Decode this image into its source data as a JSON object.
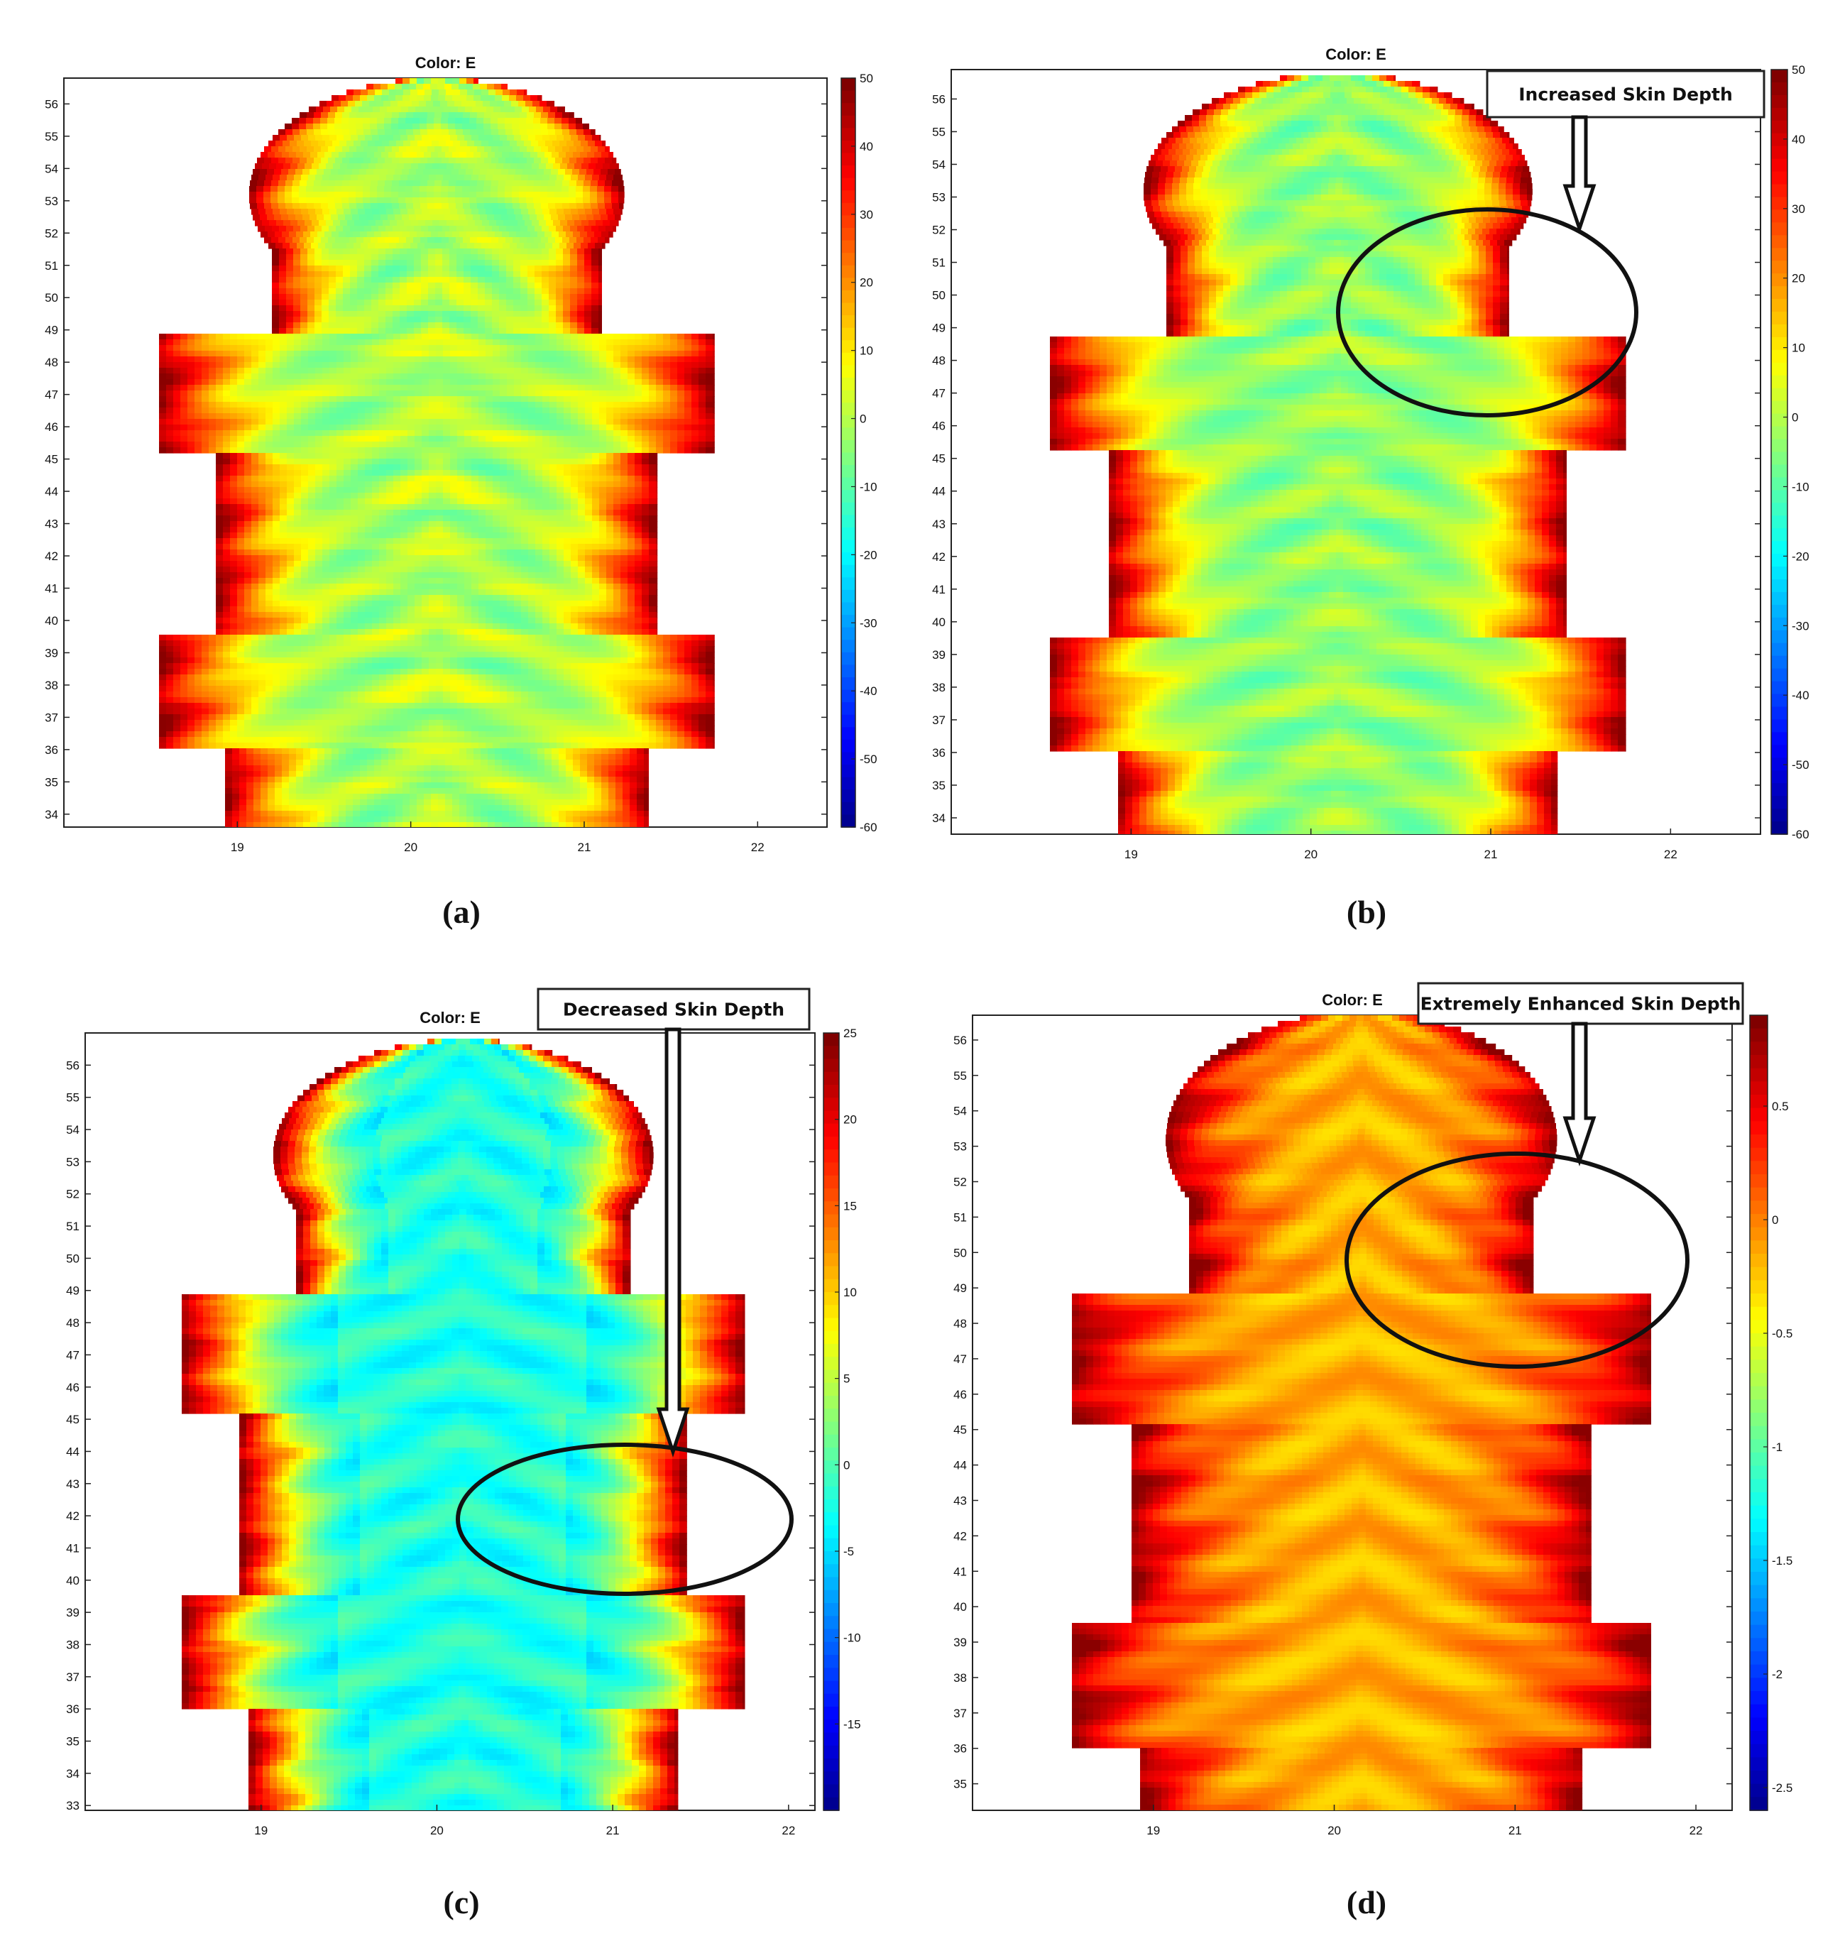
{
  "figure": {
    "panels": [
      {
        "id": "a",
        "caption": "(a)",
        "title": "Color: E",
        "callout": "",
        "colormap": "jet",
        "profile": "normal"
      },
      {
        "id": "b",
        "caption": "(b)",
        "title": "Color: E",
        "callout": "Increased Skin Depth",
        "colormap": "jet",
        "profile": "increased"
      },
      {
        "id": "c",
        "caption": "(c)",
        "title": "Color: E",
        "callout": "Decreased Skin Depth",
        "colormap": "jet",
        "profile": "decreased"
      },
      {
        "id": "d",
        "caption": "(d)",
        "title": "Color: E",
        "callout": "Extremely Enhanced Skin Depth",
        "colormap": "jet",
        "profile": "extreme"
      }
    ]
  },
  "chart_data": [
    {
      "type": "heatmap",
      "title": "Color: E",
      "xlabel": "",
      "ylabel": "",
      "x_ticks": [
        "19",
        "20",
        "21",
        "22"
      ],
      "y_ticks": [
        "34",
        "35",
        "36",
        "37",
        "38",
        "39",
        "40",
        "41",
        "42",
        "43",
        "44",
        "45",
        "46",
        "47",
        "48",
        "49",
        "50",
        "51",
        "52",
        "53",
        "54",
        "55",
        "56"
      ],
      "xlim": [
        18.0,
        22.4
      ],
      "ylim": [
        33.6,
        56.8
      ],
      "colorbar_ticks": [
        "50",
        "40",
        "30",
        "20",
        "10",
        "0",
        "-10",
        "-20",
        "-30",
        "-40",
        "-50",
        "-60"
      ],
      "colorbar_range": [
        -60,
        50
      ],
      "annotation": ""
    },
    {
      "type": "heatmap",
      "title": "Color: E",
      "xlabel": "",
      "ylabel": "",
      "x_ticks": [
        "19",
        "20",
        "21",
        "22"
      ],
      "y_ticks": [
        "34",
        "35",
        "36",
        "37",
        "38",
        "39",
        "40",
        "41",
        "42",
        "43",
        "44",
        "45",
        "46",
        "47",
        "48",
        "49",
        "50",
        "51",
        "52",
        "53",
        "54",
        "55",
        "56"
      ],
      "xlim": [
        18.0,
        22.5
      ],
      "ylim": [
        33.5,
        56.9
      ],
      "colorbar_ticks": [
        "50",
        "40",
        "30",
        "20",
        "10",
        "0",
        "-10",
        "-20",
        "-30",
        "-40",
        "-50",
        "-60"
      ],
      "colorbar_range": [
        -60,
        50
      ],
      "annotation": "Increased Skin Depth",
      "highlight": {
        "x": 21.05,
        "y": 49.5
      }
    },
    {
      "type": "heatmap",
      "title": "Color: E",
      "xlabel": "",
      "ylabel": "",
      "x_ticks": [
        "19",
        "20",
        "21",
        "22"
      ],
      "y_ticks": [
        "33",
        "34",
        "35",
        "36",
        "37",
        "38",
        "39",
        "40",
        "41",
        "42",
        "43",
        "44",
        "45",
        "46",
        "47",
        "48",
        "49",
        "50",
        "51",
        "52",
        "53",
        "54",
        "55",
        "56"
      ],
      "xlim": [
        18.0,
        22.15
      ],
      "ylim": [
        32.85,
        57.0
      ],
      "colorbar_ticks": [
        "25",
        "20",
        "15",
        "10",
        "5",
        "0",
        "-5",
        "-10",
        "-15"
      ],
      "colorbar_range": [
        -20,
        25
      ],
      "annotation": "Decreased Skin Depth",
      "highlight": {
        "x": 20.95,
        "y": 42.0
      }
    },
    {
      "type": "heatmap",
      "title": "Color: E",
      "xlabel": "",
      "ylabel": "",
      "x_ticks": [
        "19",
        "20",
        "21",
        "22"
      ],
      "y_ticks": [
        "35",
        "36",
        "37",
        "38",
        "39",
        "40",
        "41",
        "42",
        "43",
        "44",
        "45",
        "46",
        "47",
        "48",
        "49",
        "50",
        "51",
        "52",
        "53",
        "54",
        "55",
        "56"
      ],
      "xlim": [
        18.0,
        22.2
      ],
      "ylim": [
        34.25,
        56.7
      ],
      "colorbar_ticks": [
        "0.5",
        "0",
        "-0.5",
        "-1",
        "-1.5",
        "-2",
        "-2.5"
      ],
      "colorbar_range": [
        -2.6,
        0.9
      ],
      "annotation": "Extremely Enhanced Skin Depth",
      "highlight": {
        "x": 21.0,
        "y": 49.95
      }
    }
  ]
}
